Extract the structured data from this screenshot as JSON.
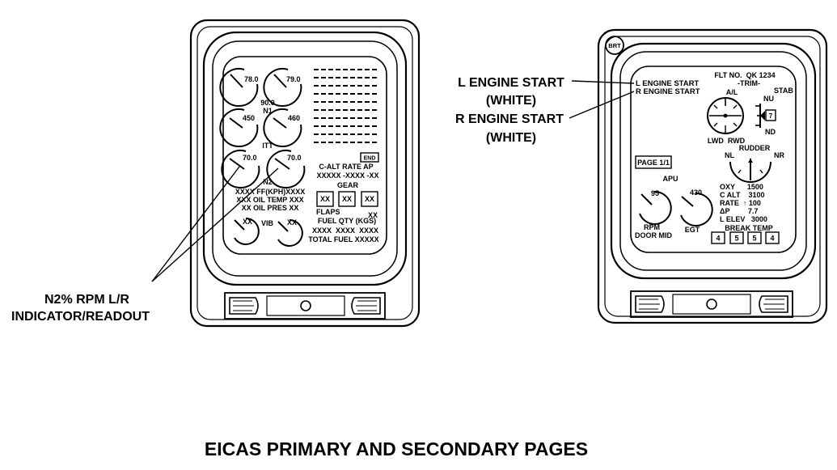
{
  "caption": "EICAS PRIMARY AND SECONDARY PAGES",
  "callouts": {
    "n2_line1": "N2% RPM L/R",
    "n2_line2": "INDICATOR/READOUT",
    "l_engine_start": "L ENGINE START",
    "white1": "(WHITE)",
    "r_engine_start": "R ENGINE START",
    "white2": "(WHITE)"
  },
  "primary": {
    "n1_left": "78.0",
    "n1_right": "79.0",
    "n1_center": "90.0",
    "n1_label": "N1",
    "itt_left": "450",
    "itt_right": "460",
    "itt_label": "ITT",
    "n2_left": "70.0",
    "n2_right": "70.0",
    "n2_label": "N2",
    "ff": "XXXX FF(KPH)XXXX",
    "oil_temp": "XXX OIL TEMP XXX",
    "oil_pres": "XX OIL PRES XX",
    "vib_left": "XX",
    "vib_label": "VIB",
    "vib_right": "XX",
    "end_box": "END",
    "calt_header": "C-ALT RATE AP",
    "calt_values": "XXXXX -XXXX -XX",
    "gear_label": "GEAR",
    "gear_boxes": [
      "XX",
      "XX",
      "XX"
    ],
    "flaps_label": "FLAPS",
    "flaps_value": "XX",
    "fuel_qty_label": "FUEL QTY (KGS)",
    "fuel_qty_values": "XXXX  XXXX  XXXX",
    "total_fuel": "TOTAL FUEL XXXXX"
  },
  "secondary": {
    "brt": "BRT",
    "flt_no": "FLT NO.  QK 1234",
    "trim": "-TRIM-",
    "l_engine_start": "L ENGINE START",
    "r_engine_start": "R ENGINE START",
    "al_label": "A/L",
    "stab_label": "STAB",
    "nu_label": "NU",
    "stab_value": "7",
    "nd_label": "ND",
    "lwd_rwd": "LWD  RWD",
    "rudder_label": "RUDDER",
    "nl_label": "NL",
    "nr_label": "NR",
    "page": "PAGE 1/1",
    "apu_label": "APU",
    "rpm_value": "95",
    "egt_value": "430",
    "rpm_label": "RPM",
    "door_label": "DOOR MID",
    "egt_label": "EGT",
    "oxy": "OXY      1500",
    "c_alt": "C ALT    3100",
    "rate": "RATE  ↑ 100",
    "delta_p": "ΔP         7.7",
    "l_elev": "L ELEV   3000",
    "break_temp": "BREAK TEMP",
    "brake_boxes": [
      "4",
      "5",
      "5",
      "4"
    ]
  }
}
